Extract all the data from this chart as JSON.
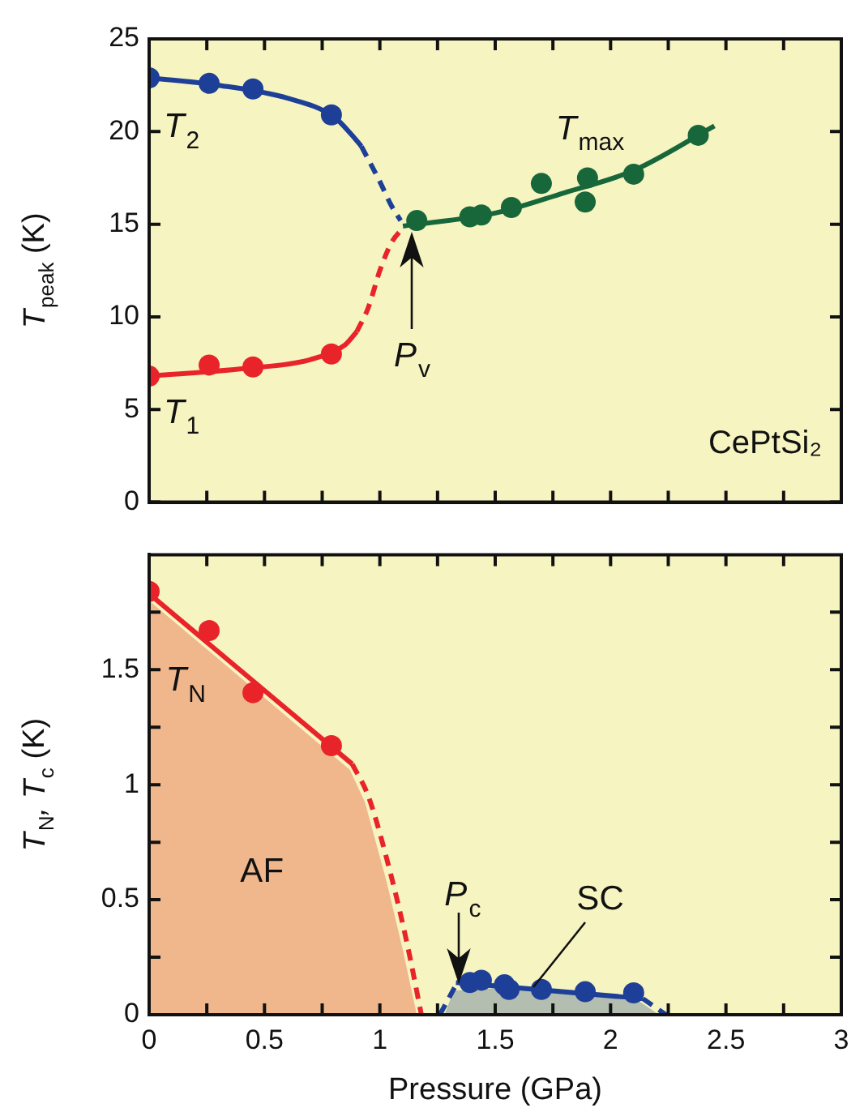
{
  "chart_data": [
    {
      "type": "scatter",
      "ylabel": "T$_{peak}$ (K)",
      "xlim": [
        0,
        3
      ],
      "ylim": [
        0,
        25
      ],
      "xticks": [
        0,
        {
          "value": 0.25,
          "label": null
        },
        0.5,
        {
          "value": 0.75,
          "label": null
        },
        1,
        {
          "value": 1.25,
          "label": null
        },
        1.5,
        {
          "value": 1.75,
          "label": null
        },
        2,
        {
          "value": 2.25,
          "label": null
        },
        2.5,
        {
          "value": 2.75,
          "label": null
        },
        3
      ],
      "yticks": [
        0,
        5,
        10,
        15,
        20,
        25
      ],
      "tick_labels": "y",
      "annotations": [
        "T$_{2}$",
        "T$_{1}$",
        "T$_{max}$",
        {
          "text": "P$_{v}$",
          "x": 1.14,
          "y": 14.4
        },
        "CePtSi₂"
      ],
      "series": [
        {
          "type": "scatter",
          "marker": "circle",
          "color": "#1d3f97",
          "x": [
            0,
            0.26,
            0.45,
            0.79
          ],
          "values": [
            22.9,
            22.6,
            22.3,
            20.9
          ]
        },
        {
          "type": "line",
          "marker": "none",
          "line_style": "solid",
          "color": "#1d3f97",
          "x": [
            0,
            0.3,
            0.6,
            0.8,
            0.88,
            0.92
          ],
          "values": [
            22.9,
            22.5,
            21.8,
            20.8,
            19.8,
            19.2
          ]
        },
        {
          "type": "line",
          "marker": "none",
          "line_style": "dashed",
          "color": "#1d3f97",
          "x": [
            0.92,
            1.0,
            1.05,
            1.09
          ],
          "values": [
            19.2,
            17.3,
            16.0,
            15.2
          ]
        },
        {
          "type": "scatter",
          "marker": "circle",
          "color": "#e8242a",
          "x": [
            0,
            0.26,
            0.45,
            0.79
          ],
          "values": [
            6.8,
            7.4,
            7.3,
            8.0
          ]
        },
        {
          "type": "line",
          "marker": "none",
          "line_style": "solid",
          "color": "#e8242a",
          "x": [
            0,
            0.4,
            0.7,
            0.85,
            0.9
          ],
          "values": [
            6.8,
            7.2,
            7.7,
            8.5,
            9.2
          ]
        },
        {
          "type": "line",
          "marker": "none",
          "line_style": "dashed",
          "color": "#e8242a",
          "x": [
            0.9,
            0.95,
            1.0,
            1.05,
            1.1
          ],
          "values": [
            9.2,
            10.5,
            12.5,
            14.0,
            14.8
          ]
        },
        {
          "marker": "circle",
          "color": "#17673a",
          "x": [
            1.16,
            1.39,
            1.44,
            1.57,
            1.7,
            1.89,
            1.9,
            2.1,
            2.38
          ],
          "values": [
            15.2,
            15.4,
            15.5,
            15.9,
            17.2,
            16.2,
            17.5,
            17.7,
            19.8
          ]
        },
        {
          "type": "line",
          "marker": "none",
          "line_style": "solid",
          "color": "#17673a",
          "x": [
            1.1,
            1.5,
            1.8,
            2.1,
            2.45
          ],
          "values": [
            14.9,
            15.6,
            16.7,
            17.9,
            20.3
          ]
        }
      ]
    },
    {
      "type": "scatter",
      "xlabel": "Pressure (GPa)",
      "ylabel": "T$_{N}$, T$_{c}$ (K)",
      "xlim": [
        0,
        3
      ],
      "ylim": [
        0,
        2
      ],
      "xticks": [
        0,
        {
          "value": 0.25,
          "label": null
        },
        0.5,
        {
          "value": 0.75,
          "label": null
        },
        1,
        {
          "value": 1.25,
          "label": null
        },
        1.5,
        {
          "value": 1.75,
          "label": null
        },
        2,
        {
          "value": 2.25,
          "label": null
        },
        2.5,
        {
          "value": 2.75,
          "label": null
        },
        3
      ],
      "yticks": [
        0,
        {
          "value": 0.25,
          "label": null
        },
        0.5,
        {
          "value": 0.75,
          "label": null
        },
        1,
        {
          "value": 1.25,
          "label": null
        },
        1.5,
        {
          "value": 1.75,
          "label": null
        }
      ],
      "annotations": [
        "T$_{N}$",
        "AF",
        {
          "text": "P$_{c}$",
          "x": 1.345,
          "y": 0.15
        },
        {
          "text": "SC",
          "x": 1.66,
          "y": 0.11
        }
      ],
      "series": [
        {
          "type": "area",
          "marker": "none",
          "color": "#f0b78c",
          "x": [
            0,
            0.87,
            0.935,
            1.03,
            1.1,
            1.16
          ],
          "values": [
            1.8,
            1.065,
            0.925,
            0.575,
            0.28,
            0
          ]
        },
        {
          "type": "area",
          "marker": "none",
          "color": "#b3bdb0",
          "x": [
            1.28,
            1.32,
            1.5,
            1.8,
            2.13,
            2.21
          ],
          "values": [
            0,
            0.105,
            0.115,
            0.1,
            0.055,
            0
          ]
        },
        {
          "type": "scatter",
          "marker": "circle",
          "color": "#e8242a",
          "x": [
            0,
            0.26,
            0.45,
            0.79
          ],
          "values": [
            1.84,
            1.67,
            1.4,
            1.17
          ]
        },
        {
          "type": "line",
          "marker": "none",
          "line_style": "solid",
          "color": "#e8242a",
          "x": [
            0,
            0.88
          ],
          "values": [
            1.83,
            1.09
          ]
        },
        {
          "type": "line",
          "marker": "none",
          "line_style": "dashed",
          "color": "#e8242a",
          "x": [
            0.88,
            0.95,
            1.05,
            1.12,
            1.18
          ],
          "values": [
            1.09,
            0.95,
            0.6,
            0.3,
            0
          ]
        },
        {
          "marker": "circle",
          "color": "#1d3f97",
          "x": [
            1.39,
            1.44,
            1.54,
            1.56,
            1.7,
            1.89,
            2.1
          ],
          "values": [
            0.14,
            0.15,
            0.13,
            0.11,
            0.11,
            0.1,
            0.095
          ]
        },
        {
          "type": "line",
          "marker": "none",
          "line_style": "solid",
          "color": "#1d3f97",
          "x": [
            1.33,
            2.14
          ],
          "values": [
            0.14,
            0.07
          ]
        },
        {
          "type": "line",
          "marker": "none",
          "line_style": "dashed",
          "color": "#1d3f97",
          "x": [
            1.26,
            1.33
          ],
          "values": [
            0,
            0.13
          ]
        },
        {
          "type": "line",
          "marker": "none",
          "line_style": "dashed",
          "color": "#1d3f97",
          "x": [
            2.14,
            2.24
          ],
          "values": [
            0.07,
            0
          ]
        }
      ]
    }
  ]
}
